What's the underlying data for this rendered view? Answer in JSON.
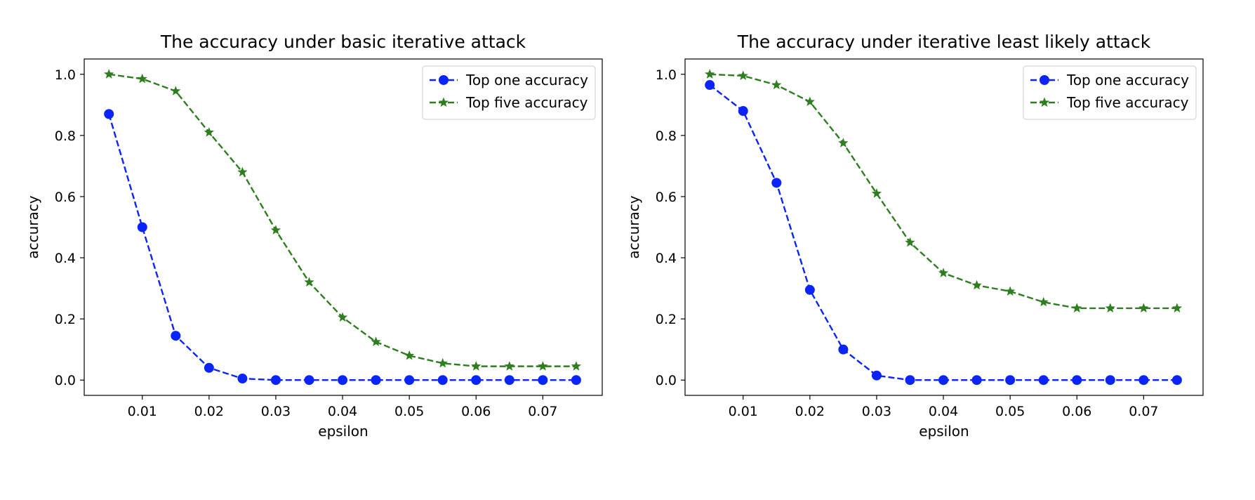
{
  "chart_data": [
    {
      "type": "line",
      "title": "The accuracy under basic iterative attack",
      "xlabel": "epsilon",
      "ylabel": "accuracy",
      "xlim": [
        0.0013,
        0.0789
      ],
      "ylim": [
        -0.05,
        1.05
      ],
      "xticks": [
        0.01,
        0.02,
        0.03,
        0.04,
        0.05,
        0.06,
        0.07
      ],
      "xtick_labels": [
        "0.01",
        "0.02",
        "0.03",
        "0.04",
        "0.05",
        "0.06",
        "0.07"
      ],
      "yticks": [
        0.0,
        0.2,
        0.4,
        0.6,
        0.8,
        1.0
      ],
      "ytick_labels": [
        "0.0",
        "0.2",
        "0.4",
        "0.6",
        "0.8",
        "1.0"
      ],
      "grid": false,
      "legend_position": "top-right",
      "x": [
        0.005,
        0.01,
        0.015,
        0.02,
        0.025,
        0.03,
        0.035,
        0.04,
        0.045,
        0.05,
        0.055,
        0.06,
        0.065,
        0.07,
        0.075
      ],
      "series": [
        {
          "name": "Top one accuracy",
          "color": "#0b24fb",
          "marker": "circle",
          "linestyle": "dashed",
          "values": [
            0.87,
            0.5,
            0.145,
            0.04,
            0.005,
            0.0,
            0.0,
            0.0,
            0.0,
            0.0,
            0.0,
            0.0,
            0.0,
            0.0,
            0.0
          ]
        },
        {
          "name": "Top five accuracy",
          "color": "#2e7d1f",
          "marker": "star",
          "linestyle": "dashed",
          "values": [
            1.0,
            0.985,
            0.945,
            0.81,
            0.68,
            0.49,
            0.32,
            0.205,
            0.125,
            0.08,
            0.055,
            0.045,
            0.045,
            0.045,
            0.045
          ]
        }
      ]
    },
    {
      "type": "line",
      "title": "The accuracy under iterative least likely attack",
      "xlabel": "epsilon",
      "ylabel": "accuracy",
      "xlim": [
        0.0013,
        0.0789
      ],
      "ylim": [
        -0.05,
        1.05
      ],
      "xticks": [
        0.01,
        0.02,
        0.03,
        0.04,
        0.05,
        0.06,
        0.07
      ],
      "xtick_labels": [
        "0.01",
        "0.02",
        "0.03",
        "0.04",
        "0.05",
        "0.06",
        "0.07"
      ],
      "yticks": [
        0.0,
        0.2,
        0.4,
        0.6,
        0.8,
        1.0
      ],
      "ytick_labels": [
        "0.0",
        "0.2",
        "0.4",
        "0.6",
        "0.8",
        "1.0"
      ],
      "grid": false,
      "legend_position": "top-right",
      "x": [
        0.005,
        0.01,
        0.015,
        0.02,
        0.025,
        0.03,
        0.035,
        0.04,
        0.045,
        0.05,
        0.055,
        0.06,
        0.065,
        0.07,
        0.075
      ],
      "series": [
        {
          "name": "Top one accuracy",
          "color": "#0b24fb",
          "marker": "circle",
          "linestyle": "dashed",
          "values": [
            0.965,
            0.88,
            0.645,
            0.295,
            0.1,
            0.015,
            0.0,
            0.0,
            0.0,
            0.0,
            0.0,
            0.0,
            0.0,
            0.0,
            0.0
          ]
        },
        {
          "name": "Top five accuracy",
          "color": "#2e7d1f",
          "marker": "star",
          "linestyle": "dashed",
          "values": [
            1.0,
            0.995,
            0.965,
            0.91,
            0.775,
            0.61,
            0.45,
            0.35,
            0.31,
            0.29,
            0.255,
            0.235,
            0.235,
            0.235,
            0.235
          ]
        }
      ]
    }
  ]
}
